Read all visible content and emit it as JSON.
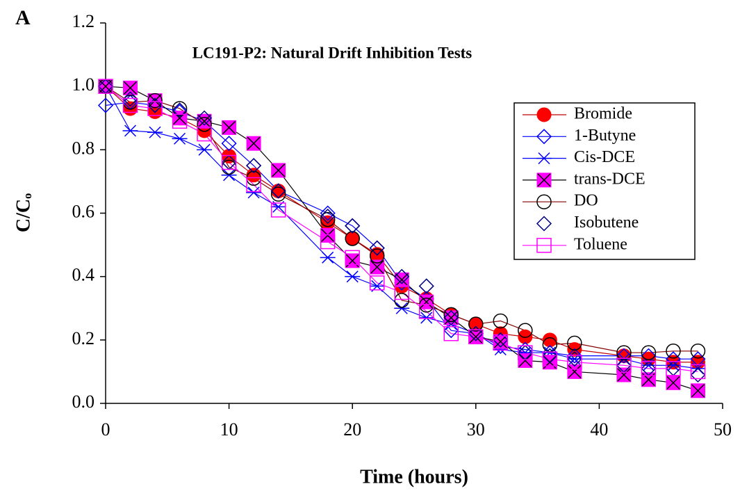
{
  "chart_data": {
    "type": "line",
    "panel_label": "A",
    "title": "LC191-P2: Natural Drift Inhibition Tests",
    "x_label": "Time (hours)",
    "y_label": "C/Cₒ",
    "x": [
      0,
      2,
      4,
      6,
      8,
      10,
      12,
      14,
      18,
      20,
      22,
      24,
      26,
      28,
      30,
      32,
      34,
      36,
      38,
      42,
      44,
      46,
      48
    ],
    "xlim": [
      0,
      50
    ],
    "xticks": [
      0,
      10,
      20,
      30,
      40,
      50
    ],
    "ylim": [
      0,
      1.2
    ],
    "yticks": [
      {
        "value": 0,
        "label": "0.0"
      },
      0.2,
      0.4,
      0.6,
      0.8,
      {
        "value": 1,
        "label": "1.0"
      },
      1.2
    ],
    "series": [
      {
        "name": "Bromide",
        "marker": "circle-filled",
        "color": "#ff0000",
        "line_color": "#c00000",
        "line": true,
        "values": [
          1.0,
          0.93,
          0.92,
          0.9,
          0.86,
          0.78,
          0.72,
          0.67,
          0.57,
          0.52,
          0.47,
          0.37,
          0.33,
          0.28,
          0.25,
          0.22,
          0.21,
          0.2,
          0.17,
          0.15,
          0.14,
          0.13,
          0.13
        ]
      },
      {
        "name": "1-Butyne",
        "marker": "diamond",
        "color": "#0000ff",
        "line_color": "#0000ff",
        "line": true,
        "values": [
          0.94,
          0.95,
          0.94,
          0.92,
          0.89,
          0.82,
          0.75,
          0.67,
          0.6,
          0.56,
          0.49,
          0.38,
          0.33,
          0.23,
          0.22,
          0.18,
          0.17,
          0.16,
          0.15,
          0.15,
          0.15,
          0.14,
          0.14
        ]
      },
      {
        "name": "Cis-DCE",
        "marker": "asterisk",
        "color": "#0000ff",
        "line_color": "#0000ff",
        "line": true,
        "values": [
          1.0,
          0.86,
          0.855,
          0.835,
          0.8,
          0.72,
          0.665,
          0.62,
          0.46,
          0.4,
          0.37,
          0.3,
          0.27,
          0.25,
          0.22,
          0.17,
          0.16,
          0.16,
          0.14,
          0.14,
          0.12,
          0.12,
          0.11
        ]
      },
      {
        "name": "trans-DCE",
        "marker": "square-x",
        "color": "#ff00ff",
        "line_color": "#000000",
        "line": true,
        "values": [
          1.0,
          0.995,
          0.955,
          0.9,
          0.89,
          0.87,
          0.82,
          0.735,
          0.53,
          0.45,
          0.43,
          0.39,
          0.32,
          0.27,
          0.21,
          0.195,
          0.135,
          0.13,
          0.1,
          0.09,
          0.075,
          0.065,
          0.04
        ]
      },
      {
        "name": "DO",
        "marker": "circle",
        "color": "#000000",
        "line_color": "#800000",
        "line": true,
        "values": [
          1.0,
          0.95,
          0.955,
          0.93,
          0.88,
          0.745,
          0.71,
          0.66,
          0.58,
          0.52,
          0.465,
          0.325,
          0.31,
          0.28,
          0.25,
          0.26,
          0.23,
          0.185,
          0.19,
          0.16,
          0.16,
          0.165,
          0.165
        ]
      },
      {
        "name": "Isobutene",
        "marker": "diamond",
        "color": "#000080",
        "line_color": "#000080",
        "line": false,
        "values": [
          1.0,
          0.96,
          0.94,
          0.925,
          0.9,
          0.76,
          0.75,
          0.67,
          0.59,
          0.56,
          0.49,
          0.4,
          0.37,
          0.27,
          0.22,
          0.2,
          0.16,
          0.15,
          0.14,
          0.12,
          0.11,
          0.11,
          0.09
        ]
      },
      {
        "name": "Toluene",
        "marker": "square",
        "color": "#ff00ff",
        "line_color": "#ff00ff",
        "line": true,
        "values": [
          1.0,
          0.94,
          0.93,
          0.89,
          0.85,
          0.76,
          0.69,
          0.61,
          0.51,
          0.46,
          0.38,
          0.35,
          0.29,
          0.22,
          0.21,
          0.19,
          0.16,
          0.14,
          0.13,
          0.12,
          0.11,
          0.11,
          0.1
        ]
      }
    ]
  }
}
